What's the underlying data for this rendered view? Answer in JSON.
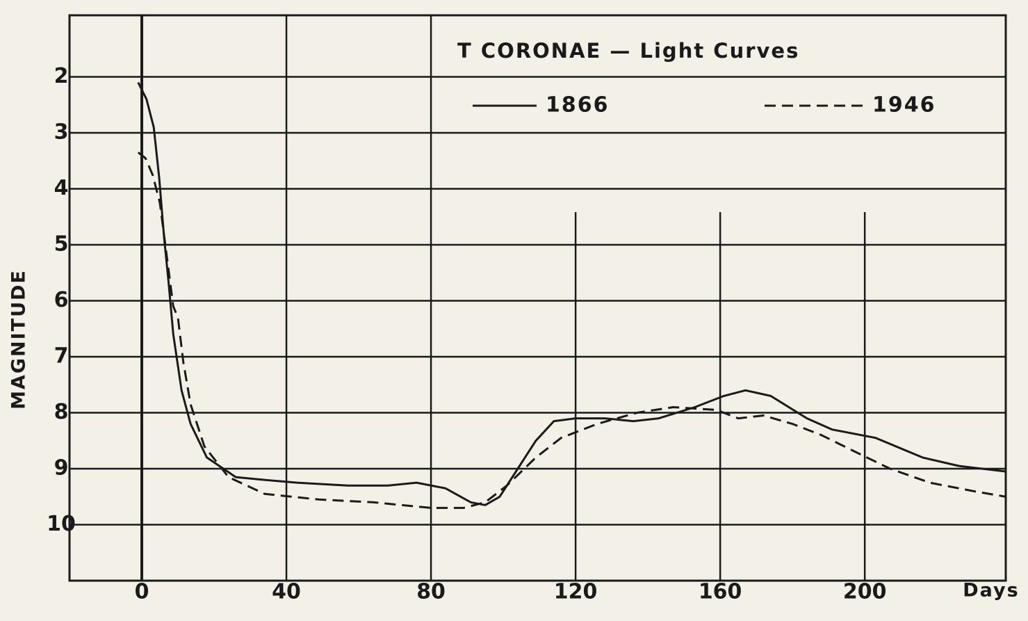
{
  "chart_data": {
    "type": "line",
    "title": "T CORONAE — Light Curves",
    "y_label": "MAGNITUDE",
    "x_label": "Days",
    "xlim": [
      -20,
      239
    ],
    "ylim": [
      11,
      0.9
    ],
    "xticks": [
      0,
      40,
      80,
      120,
      160,
      200
    ],
    "yticks": [
      2,
      3,
      4,
      5,
      6,
      7,
      8,
      9,
      10
    ],
    "grid": true,
    "series": [
      {
        "name": "1866",
        "color": "#1a1a1a",
        "line_style": "solid",
        "x": [
          -1,
          1.3,
          3.3,
          4.8,
          6.2,
          7.3,
          8.7,
          11,
          13.5,
          18,
          26,
          34,
          43,
          57,
          68,
          76,
          84,
          91,
          95,
          99,
          104,
          109,
          114,
          120,
          128,
          136,
          143,
          153,
          161,
          167,
          174,
          184,
          191,
          203,
          216,
          226,
          239
        ],
        "values": [
          2.1,
          2.4,
          2.9,
          3.8,
          4.9,
          5.6,
          6.6,
          7.6,
          8.2,
          8.8,
          9.15,
          9.2,
          9.25,
          9.3,
          9.3,
          9.25,
          9.35,
          9.6,
          9.65,
          9.5,
          9.0,
          8.5,
          8.15,
          8.1,
          8.1,
          8.15,
          8.1,
          7.9,
          7.7,
          7.6,
          7.7,
          8.1,
          8.3,
          8.45,
          8.8,
          8.95,
          9.05
        ]
      },
      {
        "name": "1946",
        "color": "#1a1a1a",
        "line_style": "dashed",
        "x": [
          -1,
          1,
          3,
          5,
          8.7,
          10,
          11.5,
          13.5,
          17.3,
          24,
          34,
          49,
          64,
          80,
          89,
          95,
          101,
          109,
          116,
          126,
          137,
          147,
          159,
          165,
          172,
          180,
          188,
          199,
          207,
          218,
          230,
          239
        ],
        "values": [
          3.35,
          3.45,
          3.75,
          4.25,
          6.1,
          6.3,
          7.1,
          7.85,
          8.6,
          9.15,
          9.45,
          9.55,
          9.6,
          9.7,
          9.7,
          9.6,
          9.3,
          8.8,
          8.45,
          8.2,
          8.0,
          7.9,
          7.95,
          8.1,
          8.05,
          8.2,
          8.4,
          8.75,
          9.0,
          9.25,
          9.4,
          9.5
        ]
      }
    ]
  }
}
